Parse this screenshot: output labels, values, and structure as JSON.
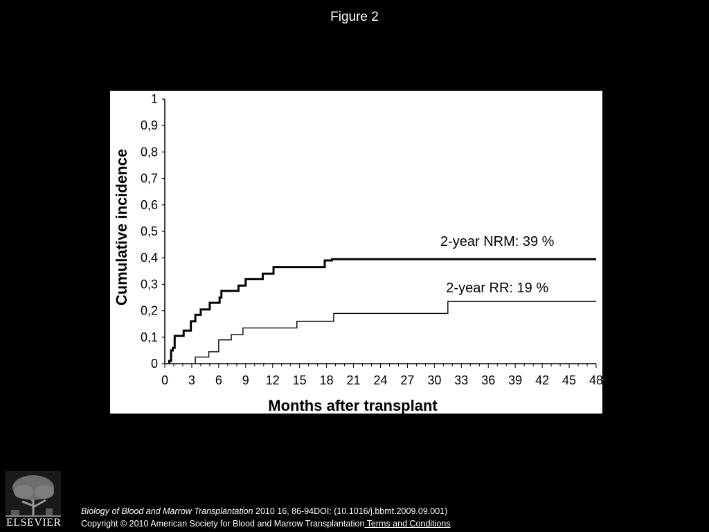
{
  "figure_title": "Figure 2",
  "chart_data": {
    "type": "line",
    "xlabel": "Months after transplant",
    "ylabel": "Cumulative incidence",
    "xlim": [
      0,
      48
    ],
    "ylim": [
      0,
      1
    ],
    "x_ticks": [
      0,
      3,
      6,
      9,
      12,
      15,
      18,
      21,
      24,
      27,
      30,
      33,
      36,
      39,
      42,
      45,
      48
    ],
    "y_ticks": [
      0,
      0.1,
      0.2,
      0.3,
      0.4,
      0.5,
      0.6,
      0.7,
      0.8,
      0.9,
      1
    ],
    "y_tick_labels": [
      "0",
      "0,1",
      "0,2",
      "0,3",
      "0,4",
      "0,5",
      "0,6",
      "0,7",
      "0,8",
      "0,9",
      "1"
    ],
    "grid": false,
    "step": true,
    "series": [
      {
        "name": "NRM",
        "style": "thick",
        "x": [
          0.5,
          0.7,
          0.9,
          1.1,
          2.1,
          2.9,
          3.4,
          4.0,
          5.0,
          6.1,
          6.3,
          8.2,
          9.0,
          10.9,
          12.1,
          13.6,
          14.9,
          16.0,
          17.8,
          18.6,
          48
        ],
        "y": [
          0.01,
          0.05,
          0.06,
          0.105,
          0.125,
          0.16,
          0.185,
          0.205,
          0.23,
          0.25,
          0.275,
          0.295,
          0.32,
          0.34,
          0.365,
          0.365,
          0.365,
          0.365,
          0.39,
          0.395,
          0.395
        ]
      },
      {
        "name": "RR",
        "style": "thin",
        "x": [
          3.4,
          4.9,
          6.0,
          7.4,
          8.7,
          14.7,
          18.8,
          31.5,
          48
        ],
        "y": [
          0.025,
          0.045,
          0.09,
          0.11,
          0.135,
          0.16,
          0.19,
          0.235,
          0.235
        ]
      }
    ],
    "annotations": [
      {
        "text": "2-year NRM: 39 %",
        "x": 37,
        "y": 0.445
      },
      {
        "text": "2-year RR: 19 %",
        "x": 37,
        "y": 0.27
      }
    ]
  },
  "footer": {
    "journal": "Biology of Blood and Marrow Transplantation",
    "citation": " 2010 16, 86-94DOI: (10.1016/j.bbmt.2009.09.001)",
    "copyright": "Copyright © 2010 American Society for Blood and Marrow Transplantation",
    "terms_link": " Terms and Conditions"
  },
  "logo": {
    "name": "ELSEVIER",
    "icon": "elsevier-tree-icon"
  },
  "colors": {
    "background": "#000000",
    "panel": "#ffffff",
    "ink": "#000000"
  }
}
